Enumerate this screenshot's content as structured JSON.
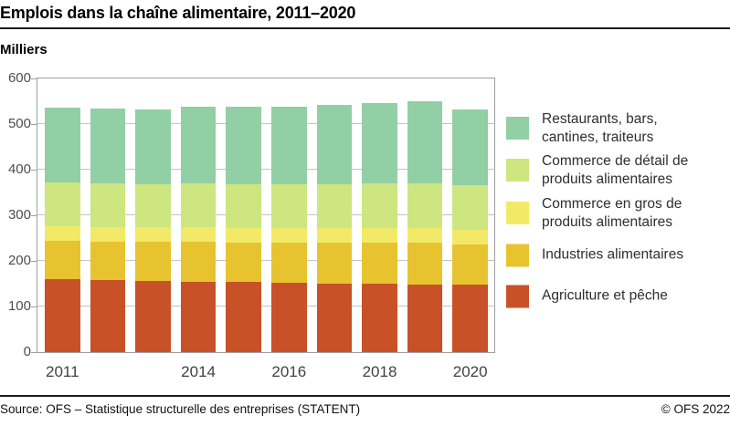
{
  "footer": {
    "source": "Source: OFS – Statistique structurelle des entreprises (STATENT)",
    "copyright": "© OFS 2022"
  },
  "chart_data": {
    "type": "bar",
    "stacked": true,
    "title": "Emplois dans la chaîne alimentaire, 2011–2020",
    "ylabel": "Milliers",
    "xlabel": "",
    "ylim": [
      0,
      600
    ],
    "yticks": [
      0,
      100,
      200,
      300,
      400,
      500,
      600
    ],
    "grid": true,
    "legend_position": "right",
    "categories": [
      "2011",
      "2012",
      "2013",
      "2014",
      "2015",
      "2016",
      "2017",
      "2018",
      "2019",
      "2020"
    ],
    "x_tick_labels_shown": [
      "2011",
      "2014",
      "2016",
      "2018",
      "2020"
    ],
    "series": [
      {
        "name": "Agriculture et pêche",
        "color": "#c85128",
        "values": [
          160,
          158,
          156,
          155,
          153,
          152,
          151,
          150,
          149,
          148
        ]
      },
      {
        "name": "Industries alimentaires",
        "color": "#e7c42f",
        "values": [
          85,
          85,
          86,
          87,
          87,
          88,
          89,
          90,
          91,
          88
        ]
      },
      {
        "name": "Commerce en gros de produits alimentaires",
        "color": "#f3e968",
        "values": [
          32,
          32,
          32,
          32,
          32,
          32,
          32,
          33,
          33,
          32
        ]
      },
      {
        "name": "Commerce de détail de produits alimentaires",
        "color": "#cde67f",
        "values": [
          96,
          96,
          95,
          96,
          96,
          96,
          97,
          97,
          98,
          98
        ]
      },
      {
        "name": "Restaurants, bars, cantines, traiteurs",
        "color": "#92cfa5",
        "values": [
          163,
          164,
          164,
          169,
          170,
          171,
          173,
          176,
          179,
          167
        ]
      }
    ],
    "totals": [
      536,
      535,
      533,
      539,
      538,
      539,
      542,
      546,
      550,
      533
    ],
    "legend": [
      {
        "lines": [
          "Restaurants, bars,",
          "cantines, traiteurs"
        ],
        "color": "#92cfa5"
      },
      {
        "lines": [
          "Commerce de détail de",
          "produits alimentaires"
        ],
        "color": "#cde67f"
      },
      {
        "lines": [
          "Commerce en gros de",
          "produits alimentaires"
        ],
        "color": "#f3e968"
      },
      {
        "lines": [
          "Industries alimentaires"
        ],
        "color": "#e7c42f"
      },
      {
        "lines": [
          "Agriculture et pêche"
        ],
        "color": "#c85128"
      }
    ],
    "ui_colors": {
      "rule": "#1c1c1c",
      "plot_border": "#9f9f9f",
      "gridline": "#c3c3c3",
      "axis_text": "#4d4d4d"
    }
  }
}
